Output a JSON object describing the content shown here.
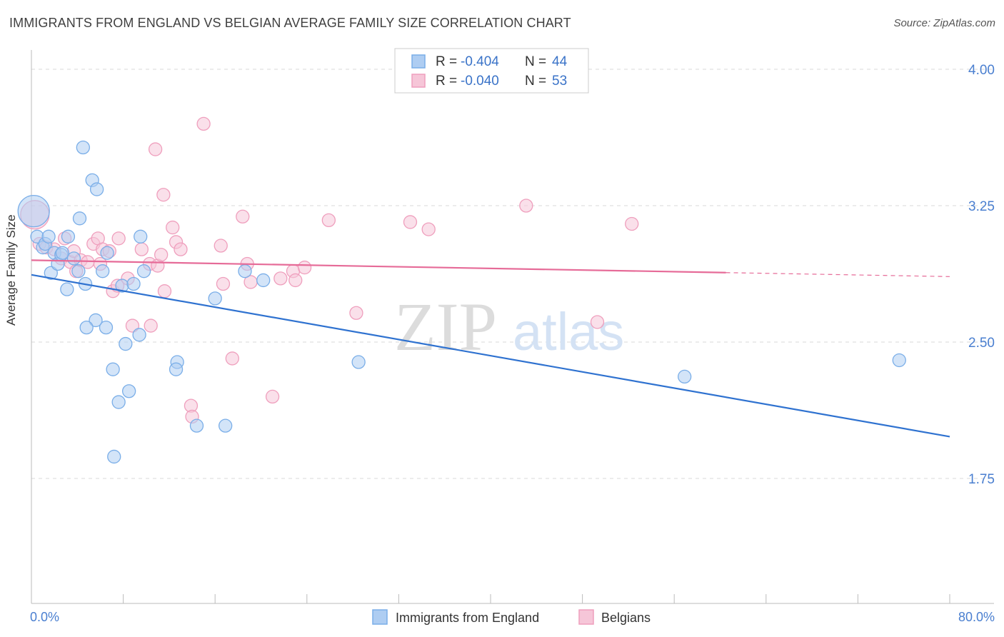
{
  "header": {
    "title": "IMMIGRANTS FROM ENGLAND VS BELGIAN AVERAGE FAMILY SIZE CORRELATION CHART",
    "source": "Source: ZipAtlas.com"
  },
  "watermark": {
    "zip": "ZIP",
    "atlas": "atlas"
  },
  "legend_top": [
    {
      "r_label": "R = ",
      "r_value": "-0.404",
      "n_label": "N = ",
      "n_value": "44"
    },
    {
      "r_label": "R = ",
      "r_value": "-0.040",
      "n_label": "N = ",
      "n_value": "53"
    }
  ],
  "colors": {
    "england": "#7aaee8",
    "england_fill": "#aecdf2",
    "england_line": "#2f72d0",
    "belgians": "#ef9fbd",
    "belgians_fill": "#f6c6d8",
    "belgians_line": "#e66b98",
    "axis_label": "#4a7fd0",
    "grid": "#d9d9d9"
  },
  "chart_data": {
    "type": "scatter",
    "ylabel": "Average Family Size",
    "xlim": [
      0,
      80
    ],
    "ylim": [
      1.1,
      4.15
    ],
    "x_ticks_labeled": [
      {
        "value": 0,
        "label": "0.0%"
      },
      {
        "value": 80,
        "label": "80.0%"
      }
    ],
    "x_tick_marks": [
      0,
      8,
      16,
      24,
      32,
      40,
      48,
      56,
      64,
      72,
      80
    ],
    "y_ticks": [
      {
        "value": 4.0,
        "label": "4.00"
      },
      {
        "value": 3.25,
        "label": "3.25"
      },
      {
        "value": 2.5,
        "label": "2.50"
      },
      {
        "value": 1.75,
        "label": "1.75"
      }
    ],
    "series": [
      {
        "name": "Immigrants from England",
        "key": "england",
        "trend": {
          "x0": 0,
          "y0": 2.87,
          "x1": 80,
          "y1": 1.98,
          "solid_to": 80
        },
        "points": [
          [
            0.2,
            3.22,
            22
          ],
          [
            0.5,
            3.08,
            9
          ],
          [
            1.0,
            3.02,
            9
          ],
          [
            1.2,
            3.04,
            9
          ],
          [
            1.5,
            3.08,
            9
          ],
          [
            1.7,
            2.88,
            9
          ],
          [
            2.0,
            2.99,
            9
          ],
          [
            2.3,
            2.93,
            9
          ],
          [
            2.6,
            2.98,
            9
          ],
          [
            2.7,
            2.99,
            9
          ],
          [
            3.2,
            3.08,
            9
          ],
          [
            3.1,
            2.79,
            9
          ],
          [
            4.2,
            3.18,
            9
          ],
          [
            4.5,
            3.57,
            9
          ],
          [
            4.1,
            2.89,
            9
          ],
          [
            4.7,
            2.82,
            9
          ],
          [
            5.3,
            3.39,
            9
          ],
          [
            5.7,
            3.34,
            9
          ],
          [
            6.2,
            2.89,
            9
          ],
          [
            6.5,
            2.58,
            9
          ],
          [
            5.6,
            2.62,
            9
          ],
          [
            6.6,
            2.99,
            9
          ],
          [
            7.1,
            2.35,
            9
          ],
          [
            7.6,
            2.17,
            9
          ],
          [
            7.9,
            2.81,
            9
          ],
          [
            8.2,
            2.49,
            9
          ],
          [
            8.5,
            2.23,
            9
          ],
          [
            8.9,
            2.82,
            9
          ],
          [
            9.4,
            2.54,
            9
          ],
          [
            9.5,
            3.08,
            9
          ],
          [
            9.8,
            2.89,
            9
          ],
          [
            7.2,
            1.87,
            9
          ],
          [
            12.7,
            2.39,
            9
          ],
          [
            12.6,
            2.35,
            9
          ],
          [
            14.4,
            2.04,
            9
          ],
          [
            16.0,
            2.74,
            9
          ],
          [
            16.9,
            2.04,
            9
          ],
          [
            18.6,
            2.89,
            9
          ],
          [
            20.2,
            2.84,
            9
          ],
          [
            28.5,
            2.39,
            9
          ],
          [
            56.9,
            2.31,
            9
          ],
          [
            75.6,
            2.4,
            9
          ],
          [
            4.8,
            2.58,
            9
          ],
          [
            3.7,
            2.96,
            9
          ]
        ]
      },
      {
        "name": "Belgians",
        "key": "belgians",
        "trend": {
          "x0": 0,
          "y0": 2.95,
          "x1": 80,
          "y1": 2.86,
          "solid_to": 60.5
        },
        "points": [
          [
            0.3,
            3.2,
            20
          ],
          [
            0.7,
            3.04,
            9
          ],
          [
            1.3,
            3.02,
            9
          ],
          [
            2.0,
            3.01,
            9
          ],
          [
            2.6,
            2.96,
            9
          ],
          [
            2.9,
            3.07,
            9
          ],
          [
            3.4,
            2.94,
            9
          ],
          [
            3.9,
            2.89,
            9
          ],
          [
            3.7,
            3.0,
            9
          ],
          [
            4.3,
            2.95,
            9
          ],
          [
            4.9,
            2.94,
            9
          ],
          [
            5.4,
            3.04,
            9
          ],
          [
            5.8,
            3.07,
            9
          ],
          [
            6.2,
            3.01,
            9
          ],
          [
            6.8,
            3.0,
            9
          ],
          [
            7.1,
            2.78,
            9
          ],
          [
            7.5,
            2.81,
            9
          ],
          [
            8.4,
            2.85,
            9
          ],
          [
            7.6,
            3.07,
            9
          ],
          [
            8.8,
            2.59,
            9
          ],
          [
            9.6,
            3.01,
            9
          ],
          [
            10.3,
            2.93,
            9
          ],
          [
            10.4,
            2.59,
            9
          ],
          [
            11.0,
            2.92,
            9
          ],
          [
            11.3,
            2.98,
            9
          ],
          [
            11.5,
            3.31,
            9
          ],
          [
            11.6,
            2.78,
            9
          ],
          [
            12.3,
            3.13,
            9
          ],
          [
            12.6,
            3.05,
            9
          ],
          [
            13.0,
            3.01,
            9
          ],
          [
            13.9,
            2.15,
            9
          ],
          [
            14.0,
            2.09,
            9
          ],
          [
            15.0,
            3.7,
            9
          ],
          [
            16.5,
            3.03,
            9
          ],
          [
            16.7,
            2.82,
            9
          ],
          [
            17.5,
            2.41,
            9
          ],
          [
            18.4,
            3.19,
            9
          ],
          [
            18.8,
            2.93,
            9
          ],
          [
            19.1,
            2.83,
            9
          ],
          [
            21.0,
            2.2,
            9
          ],
          [
            21.7,
            2.85,
            9
          ],
          [
            22.8,
            2.89,
            9
          ],
          [
            23.8,
            2.91,
            9
          ],
          [
            23.0,
            2.84,
            9
          ],
          [
            25.9,
            3.17,
            9
          ],
          [
            28.3,
            2.66,
            9
          ],
          [
            33.0,
            3.16,
            9
          ],
          [
            34.6,
            3.12,
            9
          ],
          [
            43.1,
            3.25,
            9
          ],
          [
            49.3,
            2.61,
            9
          ],
          [
            52.3,
            3.15,
            9
          ],
          [
            10.8,
            3.56,
            9
          ],
          [
            6.0,
            2.93,
            9
          ]
        ]
      }
    ],
    "legend_bottom": [
      "Immigrants from England",
      "Belgians"
    ]
  }
}
